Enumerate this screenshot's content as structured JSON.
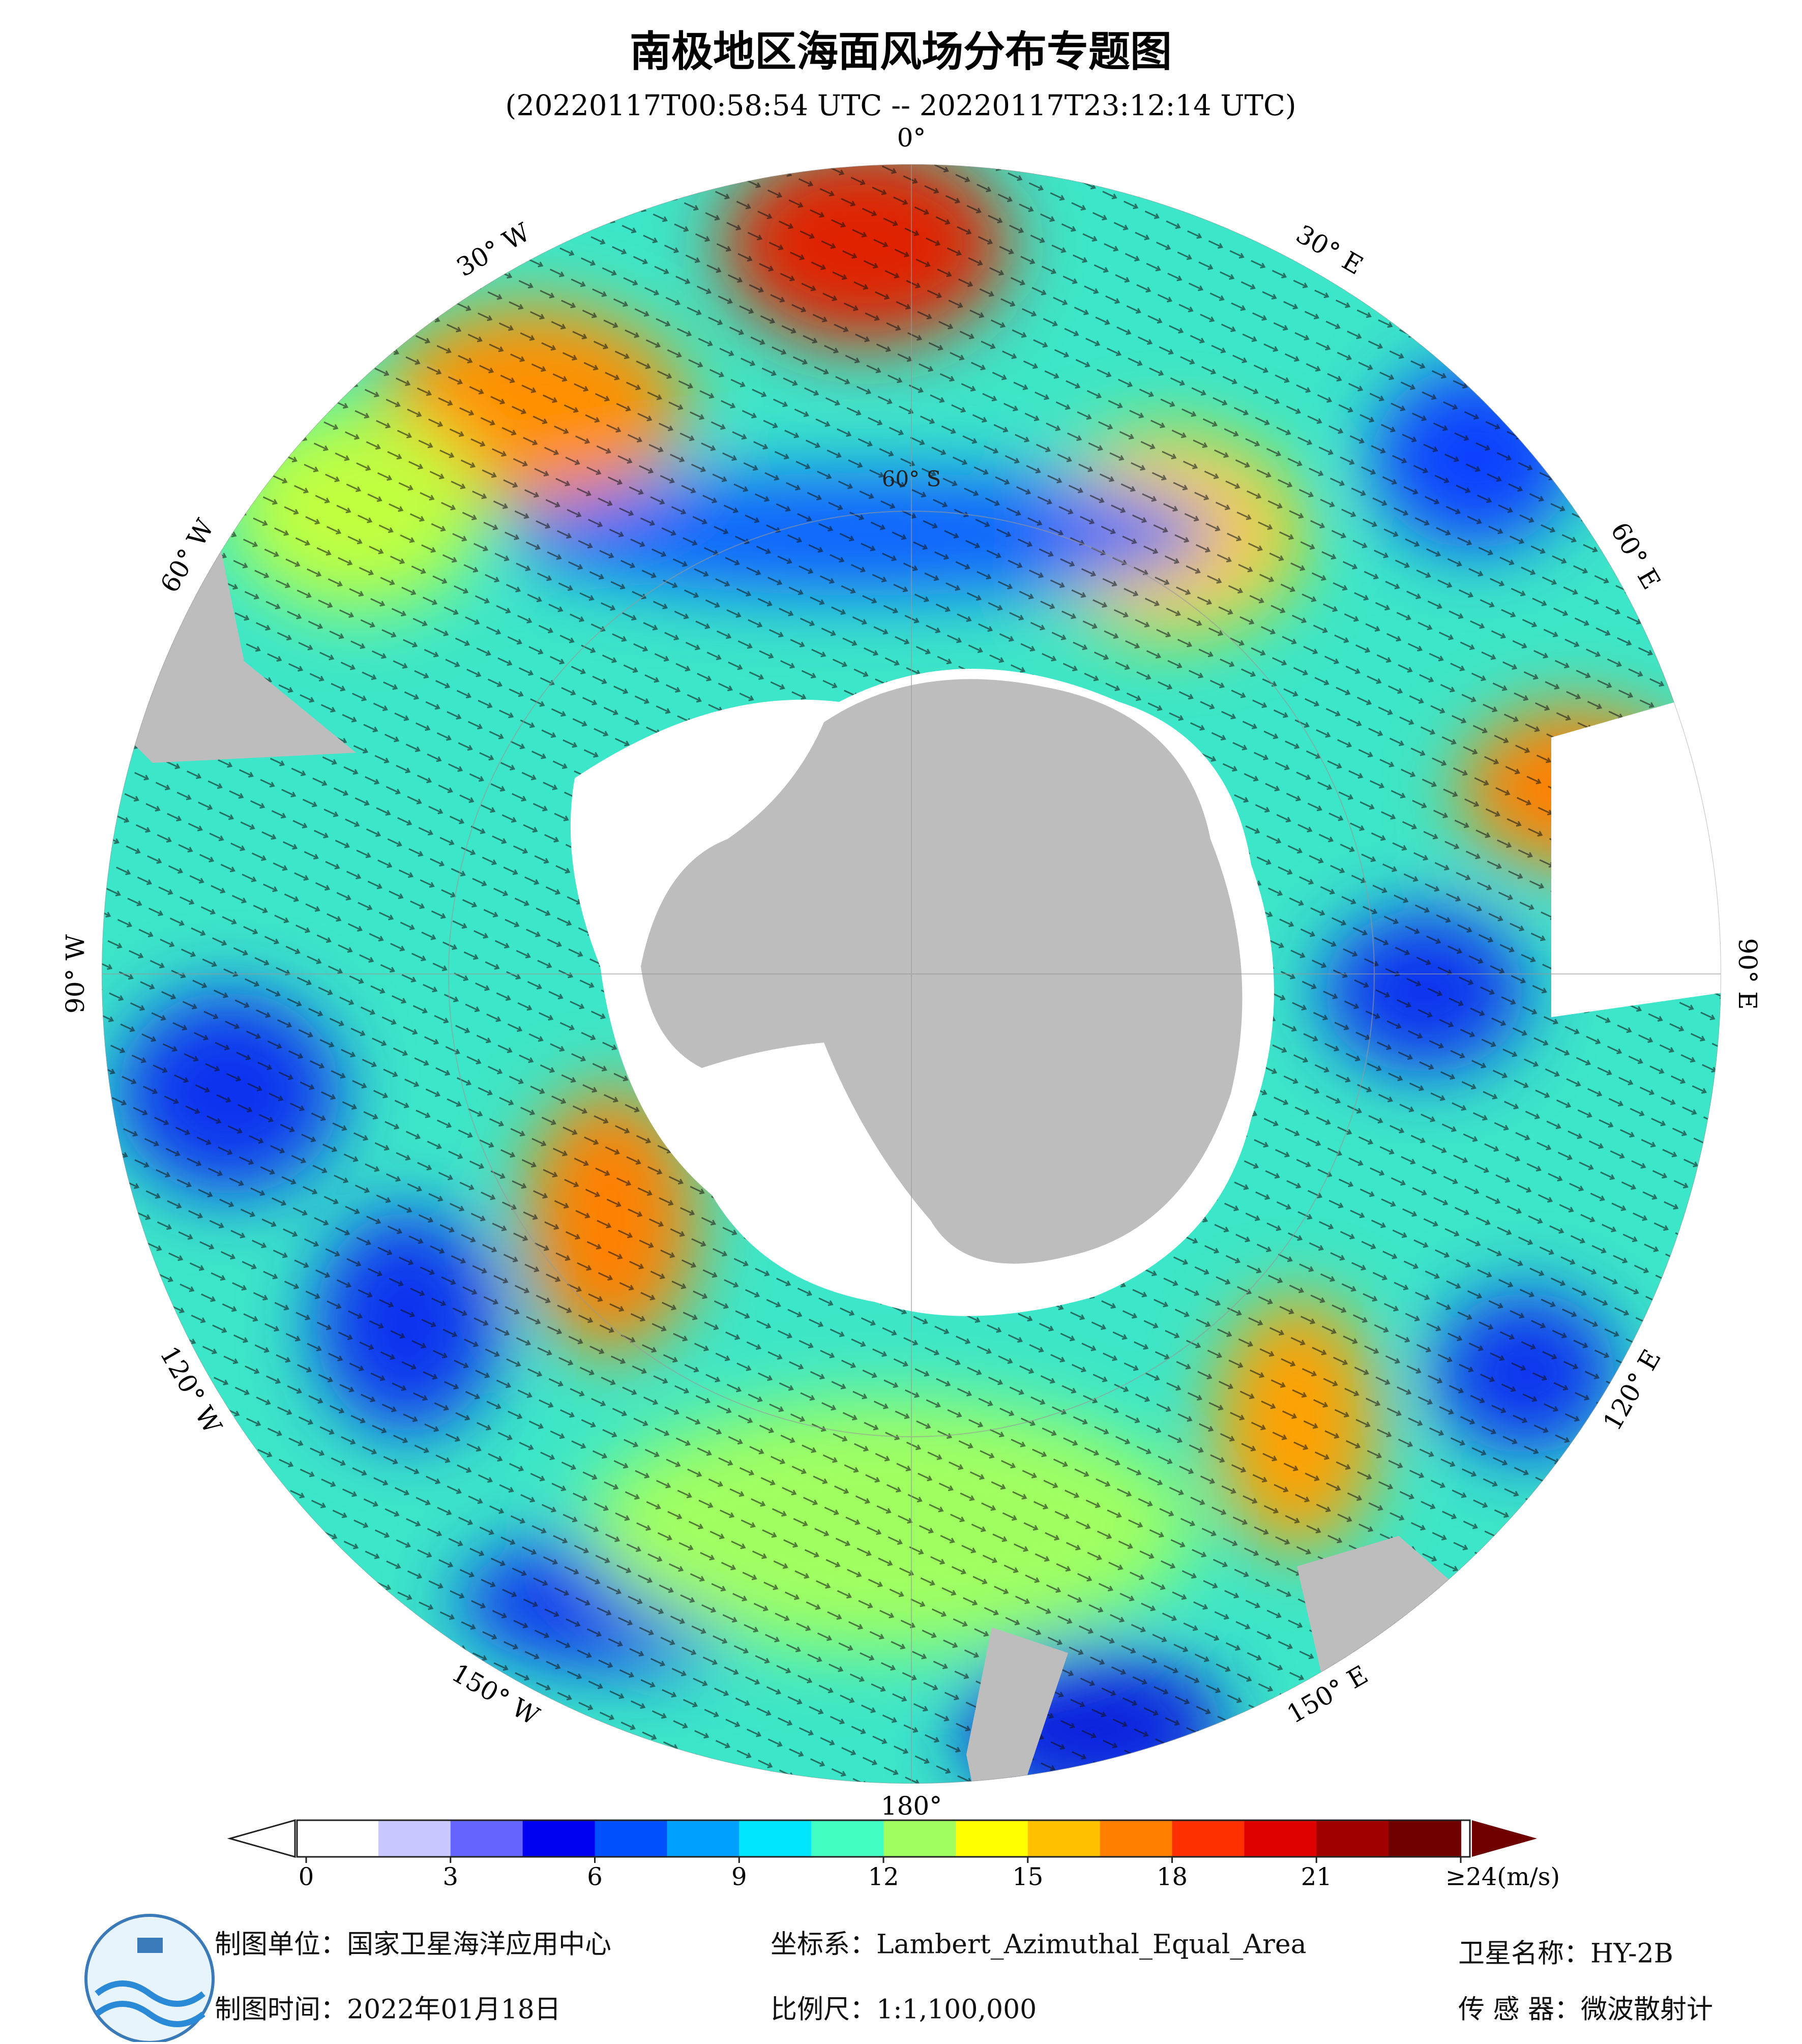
{
  "header": {
    "title": "南极地区海面风场分布专题图",
    "subtitle": "(20220117T00:58:54 UTC -- 20220117T23:12:14 UTC)"
  },
  "map": {
    "lon_labels": [
      "0°",
      "30° E",
      "60° E",
      "90° E",
      "120° E",
      "150° E",
      "180°",
      "150° W",
      "120° W",
      "90° W",
      "60° W",
      "30° W"
    ],
    "lat_label": "60° S"
  },
  "colorbar": {
    "lim": [
      0,
      24
    ],
    "ticks": [
      0,
      3,
      6,
      9,
      12,
      15,
      18,
      21,
      {
        "value": 24,
        "label": "≥24(m/s)"
      }
    ],
    "colormap": [
      "#ffffff",
      "#c8c8ff",
      "#6464ff",
      "#0000f0",
      "#0050ff",
      "#00a0ff",
      "#00e6ff",
      "#40ffc0",
      "#a0ff60",
      "#ffff00",
      "#ffc000",
      "#ff8000",
      "#ff3000",
      "#e00000",
      "#a00000",
      "#700000"
    ]
  },
  "footer": {
    "unit": "制图单位：国家卫星海洋应用中心",
    "date": "制图时间：2022年01月18日",
    "crs": "坐标系：Lambert_Azimuthal_Equal_Area",
    "scale": "比例尺：1:1,100,000",
    "satellite": "卫星名称：HY-2B",
    "sensor": "传 感 器：微波散射计"
  }
}
